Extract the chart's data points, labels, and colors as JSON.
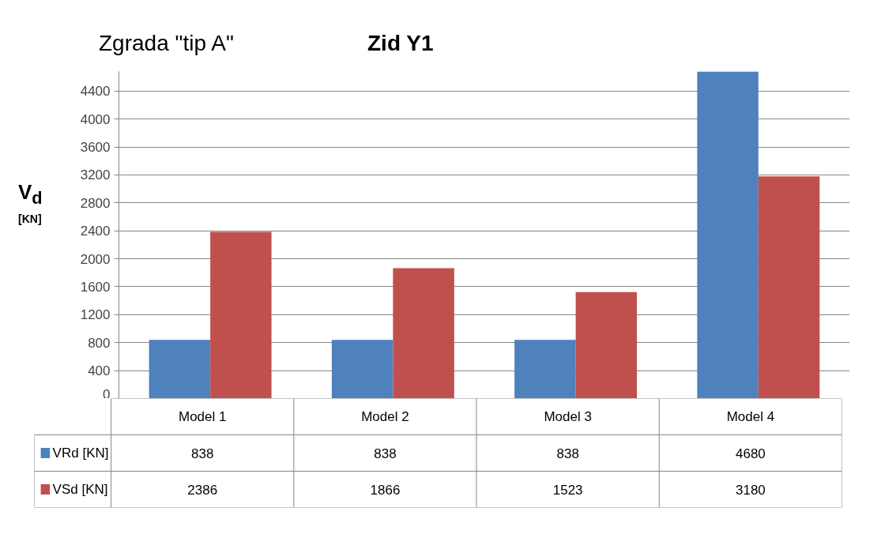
{
  "chart_data": {
    "type": "bar",
    "title": "Zgrada \"tip A\"",
    "subtitle": "Zid Y1",
    "ylabel": "V$_{d}$ [KN]",
    "categories": [
      "Model 1",
      "Model 2",
      "Model 3",
      "Model 4"
    ],
    "series": [
      {
        "name": "VRd [KN]",
        "color": "#4f81bd",
        "values": [
          838,
          838,
          838,
          4680
        ]
      },
      {
        "name": "VSd [KN]",
        "color": "#c0504d",
        "values": [
          2386,
          1866,
          1523,
          3180
        ]
      }
    ],
    "ylim": [
      0,
      4680
    ],
    "yticks": [
      0,
      400,
      800,
      1200,
      1600,
      2000,
      2400,
      2800,
      3200,
      3600,
      4000,
      4400
    ],
    "grid": "y",
    "legend": "bottom",
    "data_labels": true
  }
}
